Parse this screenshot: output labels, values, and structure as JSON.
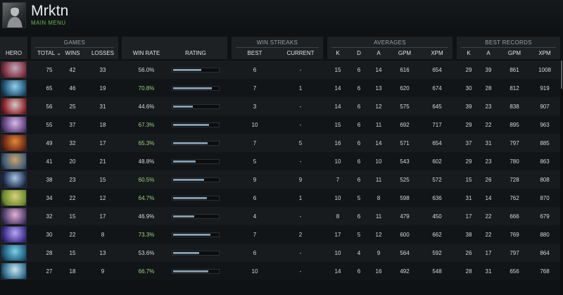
{
  "profile": {
    "name": "Mrktn",
    "menu_label": "MAIN MENU"
  },
  "groups": {
    "games": "GAMES",
    "win_streaks": "WIN STREAKS",
    "averages": "AVERAGES",
    "best_records": "BEST RECORDS"
  },
  "columns": {
    "hero": "HERO",
    "total": "TOTAL ⌄",
    "wins": "WINS",
    "losses": "LOSSES",
    "win_rate": "WIN RATE",
    "rating": "RATING",
    "best": "BEST",
    "current": "CURRENT",
    "avg_k": "K",
    "avg_d": "D",
    "avg_a": "A",
    "avg_gpm": "GPM",
    "avg_xpm": "XPM",
    "rec_k": "K",
    "rec_a": "A",
    "rec_gpm": "GPM",
    "rec_xpm": "XPM"
  },
  "colors": {
    "accent_green": "#6bb547",
    "winrate_good": "#9ed07c",
    "bar_fill": "#8fa6b8"
  },
  "rows": [
    {
      "total": "75",
      "wins": "42",
      "losses": "33",
      "win_rate": "56.0%",
      "rating": 0.6,
      "best": "6",
      "current": "-",
      "k": "15",
      "d": "6",
      "a": "14",
      "gpm": "616",
      "xpm": "654",
      "rk": "29",
      "ra": "39",
      "rgpm": "861",
      "rxpm": "1008",
      "hero_colors": [
        "#c2a7b8",
        "#7c2a3a"
      ]
    },
    {
      "total": "65",
      "wins": "46",
      "losses": "19",
      "win_rate": "70.8%",
      "rating": 0.84,
      "best": "7",
      "current": "1",
      "k": "14",
      "d": "6",
      "a": "13",
      "gpm": "620",
      "xpm": "674",
      "rk": "30",
      "ra": "28",
      "rgpm": "812",
      "rxpm": "919",
      "hero_colors": [
        "#8fd0e8",
        "#1b4e6e"
      ]
    },
    {
      "total": "56",
      "wins": "25",
      "losses": "31",
      "win_rate": "44.6%",
      "rating": 0.42,
      "best": "3",
      "current": "-",
      "k": "14",
      "d": "6",
      "a": "12",
      "gpm": "575",
      "xpm": "645",
      "rk": "39",
      "ra": "23",
      "rgpm": "838",
      "rxpm": "907",
      "hero_colors": [
        "#d7c8c8",
        "#8a1d24"
      ]
    },
    {
      "total": "55",
      "wins": "37",
      "losses": "18",
      "win_rate": "67.3%",
      "rating": 0.78,
      "best": "10",
      "current": "-",
      "k": "15",
      "d": "6",
      "a": "11",
      "gpm": "692",
      "xpm": "717",
      "rk": "29",
      "ra": "22",
      "rgpm": "895",
      "rxpm": "963",
      "hero_colors": [
        "#d8b9e6",
        "#5b3b7a"
      ]
    },
    {
      "total": "49",
      "wins": "32",
      "losses": "17",
      "win_rate": "65.3%",
      "rating": 0.74,
      "best": "7",
      "current": "5",
      "k": "16",
      "d": "6",
      "a": "14",
      "gpm": "571",
      "xpm": "654",
      "rk": "37",
      "ra": "31",
      "rgpm": "797",
      "rxpm": "885",
      "hero_colors": [
        "#e08a3a",
        "#6b2410"
      ]
    },
    {
      "total": "41",
      "wins": "20",
      "losses": "21",
      "win_rate": "48.8%",
      "rating": 0.48,
      "best": "5",
      "current": "-",
      "k": "10",
      "d": "6",
      "a": "10",
      "gpm": "543",
      "xpm": "602",
      "rk": "29",
      "ra": "23",
      "rgpm": "780",
      "rxpm": "863",
      "hero_colors": [
        "#c9a46a",
        "#3b5a7a"
      ]
    },
    {
      "total": "38",
      "wins": "23",
      "losses": "15",
      "win_rate": "60.5%",
      "rating": 0.66,
      "best": "9",
      "current": "9",
      "k": "7",
      "d": "6",
      "a": "11",
      "gpm": "525",
      "xpm": "572",
      "rk": "15",
      "ra": "26",
      "rgpm": "728",
      "rxpm": "808",
      "hero_colors": [
        "#a9c4e6",
        "#1c2a4a"
      ]
    },
    {
      "total": "34",
      "wins": "22",
      "losses": "12",
      "win_rate": "64.7%",
      "rating": 0.72,
      "best": "6",
      "current": "1",
      "k": "10",
      "d": "5",
      "a": "8",
      "gpm": "598",
      "xpm": "636",
      "rk": "31",
      "ra": "14",
      "rgpm": "762",
      "rxpm": "870",
      "hero_colors": [
        "#d8d27a",
        "#6a8a2a"
      ]
    },
    {
      "total": "32",
      "wins": "15",
      "losses": "17",
      "win_rate": "46.9%",
      "rating": 0.46,
      "best": "4",
      "current": "-",
      "k": "8",
      "d": "6",
      "a": "11",
      "gpm": "479",
      "xpm": "450",
      "rk": "17",
      "ra": "22",
      "rgpm": "666",
      "rxpm": "679",
      "hero_colors": [
        "#e6b0d2",
        "#4a3a6a"
      ]
    },
    {
      "total": "30",
      "wins": "22",
      "losses": "8",
      "win_rate": "73.3%",
      "rating": 0.8,
      "best": "7",
      "current": "2",
      "k": "17",
      "d": "5",
      "a": "12",
      "gpm": "600",
      "xpm": "662",
      "rk": "38",
      "ra": "22",
      "rgpm": "769",
      "rxpm": "880",
      "hero_colors": [
        "#b8a6f0",
        "#3a2a8a"
      ]
    },
    {
      "total": "28",
      "wins": "15",
      "losses": "13",
      "win_rate": "53.6%",
      "rating": 0.56,
      "best": "6",
      "current": "-",
      "k": "10",
      "d": "4",
      "a": "9",
      "gpm": "564",
      "xpm": "592",
      "rk": "26",
      "ra": "17",
      "rgpm": "797",
      "rxpm": "864",
      "hero_colors": [
        "#7ad0e6",
        "#1a5a7a"
      ]
    },
    {
      "total": "27",
      "wins": "18",
      "losses": "9",
      "win_rate": "66.7%",
      "rating": 0.76,
      "best": "10",
      "current": "-",
      "k": "14",
      "d": "6",
      "a": "16",
      "gpm": "492",
      "xpm": "548",
      "rk": "28",
      "ra": "31",
      "rgpm": "656",
      "rxpm": "768",
      "hero_colors": [
        "#c8e6f0",
        "#2a6a8a"
      ]
    }
  ]
}
